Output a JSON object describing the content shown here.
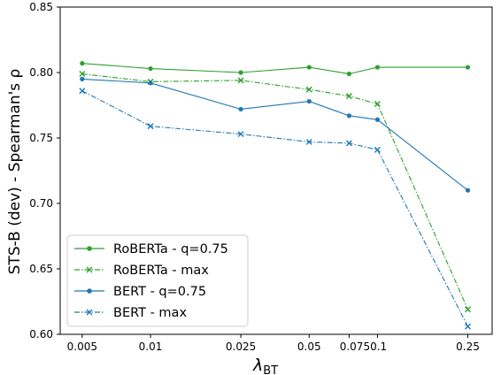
{
  "chart_data": {
    "type": "line",
    "title": "",
    "xlabel": "λ",
    "xlabel_subscript": "BT",
    "ylabel": "STS-B (dev) - Spearman's ρ",
    "categories": [
      "0.005",
      "0.01",
      "0.025",
      "0.05",
      "0.075",
      "0.1",
      "0.25"
    ],
    "x_tick_labels": [
      "0.005",
      "0.01",
      "0.025",
      "0.05",
      "0.0750.1",
      "",
      "0.25"
    ],
    "x": [
      0.005,
      0.01,
      0.025,
      0.05,
      0.075,
      0.1,
      0.25
    ],
    "x_scale": "log",
    "ylim": [
      0.6,
      0.85
    ],
    "y_ticks": [
      "0.60",
      "0.65",
      "0.70",
      "0.75",
      "0.80",
      "0.85"
    ],
    "grid": false,
    "legend_position": "lower-left",
    "series": [
      {
        "name": "RoBERTa - q=0.75",
        "color": "#2ca02c",
        "marker": "circle",
        "linestyle": "solid",
        "values": [
          0.807,
          0.803,
          0.8,
          0.804,
          0.799,
          0.804,
          0.804
        ]
      },
      {
        "name": "RoBERTa - max",
        "color": "#2ca02c",
        "marker": "x",
        "linestyle": "dashdot",
        "values": [
          0.799,
          0.793,
          0.794,
          0.787,
          0.782,
          0.776,
          0.619
        ]
      },
      {
        "name": "BERT - q=0.75",
        "color": "#1f77b4",
        "marker": "circle",
        "linestyle": "solid",
        "values": [
          0.795,
          0.792,
          0.772,
          0.778,
          0.767,
          0.764,
          0.71
        ]
      },
      {
        "name": "BERT - max",
        "color": "#1f77b4",
        "marker": "x",
        "linestyle": "dashdot",
        "values": [
          0.786,
          0.759,
          0.753,
          0.747,
          0.746,
          0.741,
          0.606
        ]
      }
    ]
  }
}
